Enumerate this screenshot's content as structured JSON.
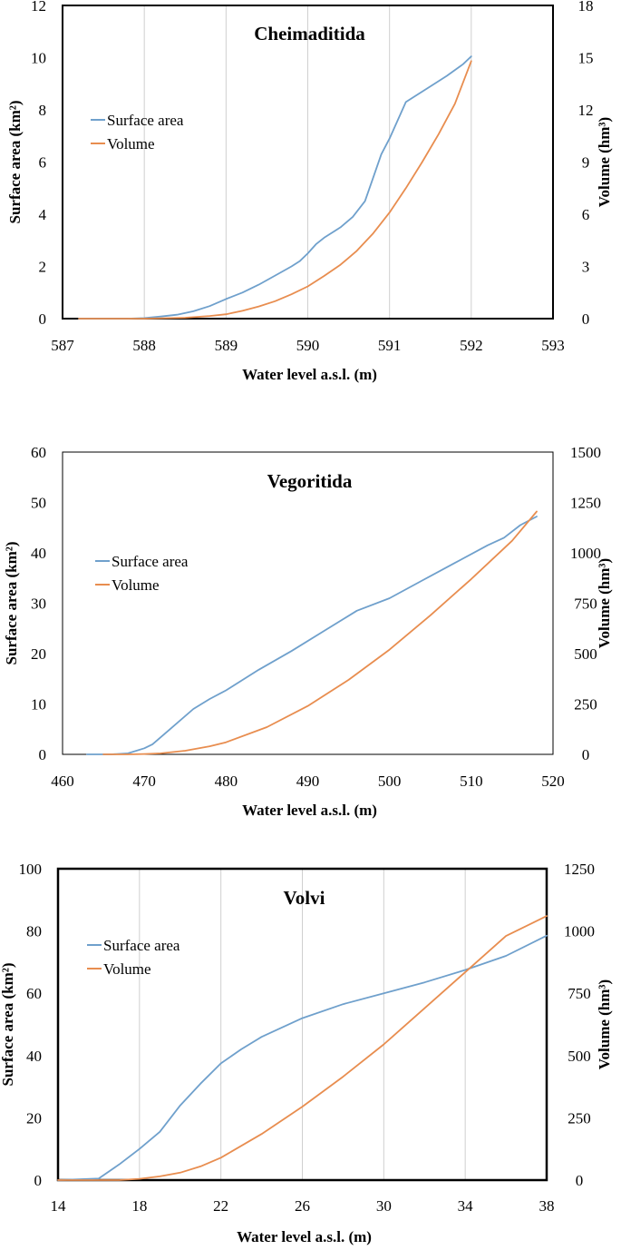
{
  "chart_data": [
    {
      "type": "line",
      "title": "Cheimaditida",
      "xlabel": "Water level a.s.l. (m)",
      "ylabel": "Surface area (km²)",
      "y2label": "Volume (hm³)",
      "xlim": [
        587,
        593
      ],
      "xticks": [
        587,
        588,
        589,
        590,
        591,
        592,
        593
      ],
      "ylim": [
        0,
        12
      ],
      "yticks": [
        0,
        2,
        4,
        6,
        8,
        10,
        12
      ],
      "y2lim": [
        0,
        18
      ],
      "y2ticks": [
        0,
        3,
        6,
        9,
        12,
        15,
        18
      ],
      "grid": "vertical",
      "legend_position": "left",
      "series": [
        {
          "name": "Surface area",
          "axis": "left",
          "color": "#6fa0cc",
          "x": [
            587.2,
            587.8,
            588.0,
            588.2,
            588.4,
            588.6,
            588.8,
            589.0,
            589.2,
            589.4,
            589.6,
            589.8,
            589.9,
            590.0,
            590.1,
            590.2,
            590.4,
            590.55,
            590.7,
            590.8,
            590.9,
            591.0,
            591.1,
            591.2,
            591.3,
            591.5,
            591.7,
            591.9,
            592.0
          ],
          "y": [
            0,
            0,
            0.02,
            0.08,
            0.15,
            0.28,
            0.48,
            0.75,
            1.0,
            1.3,
            1.65,
            2.0,
            2.2,
            2.5,
            2.85,
            3.1,
            3.5,
            3.9,
            4.5,
            5.4,
            6.3,
            6.9,
            7.6,
            8.3,
            8.5,
            8.9,
            9.3,
            9.75,
            10.05
          ]
        },
        {
          "name": "Volume",
          "axis": "right",
          "color": "#e88d4f",
          "x": [
            587.2,
            588.0,
            588.5,
            588.8,
            589.0,
            589.2,
            589.4,
            589.6,
            589.8,
            590.0,
            590.2,
            590.4,
            590.6,
            590.8,
            591.0,
            591.2,
            591.4,
            591.6,
            591.8,
            592.0
          ],
          "y": [
            0,
            0,
            0.05,
            0.15,
            0.25,
            0.45,
            0.7,
            1.0,
            1.4,
            1.85,
            2.45,
            3.1,
            3.9,
            4.9,
            6.1,
            7.5,
            9.0,
            10.6,
            12.35,
            14.8
          ]
        }
      ]
    },
    {
      "type": "line",
      "title": "Vegoritida",
      "xlabel": "Water level a.s.l. (m)",
      "ylabel": "Surface area (km²)",
      "y2label": "Volume (hm³)",
      "xlim": [
        460,
        520
      ],
      "xticks": [
        460,
        470,
        480,
        490,
        500,
        510,
        520
      ],
      "ylim": [
        0,
        60
      ],
      "yticks": [
        0,
        10,
        20,
        30,
        40,
        50,
        60
      ],
      "y2lim": [
        0,
        1500
      ],
      "y2ticks": [
        0,
        250,
        500,
        750,
        1000,
        1250,
        1500
      ],
      "grid": "none",
      "legend_position": "left",
      "series": [
        {
          "name": "Surface area",
          "axis": "left",
          "color": "#6fa0cc",
          "x": [
            463,
            466,
            468,
            470,
            471,
            473,
            476,
            478,
            480,
            484,
            488,
            492,
            496,
            500,
            504,
            508,
            512,
            514,
            516,
            518
          ],
          "y": [
            0,
            0,
            0.2,
            1.2,
            2.0,
            4.8,
            9.0,
            11.0,
            12.7,
            16.8,
            20.5,
            24.5,
            28.5,
            31.0,
            34.5,
            38.0,
            41.5,
            43.0,
            45.5,
            47.2
          ]
        },
        {
          "name": "Volume",
          "axis": "right",
          "color": "#e88d4f",
          "x": [
            465,
            468,
            470,
            472,
            475,
            478,
            480,
            485,
            490,
            495,
            500,
            505,
            510,
            515,
            518
          ],
          "y": [
            0,
            0,
            2,
            5,
            18,
            40,
            60,
            135,
            240,
            370,
            520,
            690,
            870,
            1060,
            1205
          ]
        }
      ]
    },
    {
      "type": "line",
      "title": "Volvi",
      "xlabel": "Water level a.s.l. (m)",
      "ylabel": "Surface area (km²)",
      "y2label": "Volume (hm³)",
      "xlim": [
        14,
        38
      ],
      "xticks": [
        14,
        18,
        22,
        26,
        30,
        34,
        38
      ],
      "ylim": [
        0,
        100
      ],
      "yticks": [
        0,
        20,
        40,
        60,
        80,
        100
      ],
      "y2lim": [
        0,
        1250
      ],
      "y2ticks": [
        0,
        250,
        500,
        750,
        1000,
        1250
      ],
      "grid": "vertical",
      "legend_position": "left",
      "series": [
        {
          "name": "Surface area",
          "axis": "left",
          "color": "#6fa0cc",
          "x": [
            14,
            16,
            17,
            18,
            19,
            20,
            21,
            22,
            23,
            24,
            26,
            28,
            30,
            32,
            34,
            36,
            38
          ],
          "y": [
            0,
            0.5,
            5,
            10,
            15.5,
            24,
            31,
            37.5,
            42,
            46,
            52,
            56.5,
            60,
            63.5,
            67.5,
            72,
            78.5
          ]
        },
        {
          "name": "Volume",
          "axis": "right",
          "color": "#e88d4f",
          "x": [
            14,
            17,
            18,
            19,
            20,
            21,
            22,
            24,
            26,
            28,
            30,
            32,
            34,
            36,
            38
          ],
          "y": [
            0,
            0,
            5,
            15,
            30,
            55,
            90,
            185,
            295,
            415,
            545,
            690,
            835,
            980,
            1060
          ]
        }
      ]
    }
  ]
}
